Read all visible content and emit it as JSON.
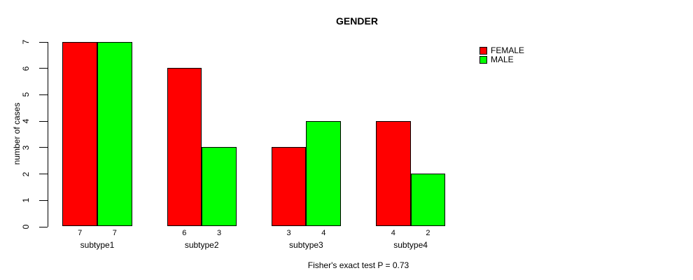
{
  "title": "GENDER",
  "footer": "Fisher's exact test P = 0.73",
  "chart_data": {
    "type": "bar",
    "title": "GENDER",
    "categories": [
      "subtype1",
      "subtype2",
      "subtype3",
      "subtype4"
    ],
    "series": [
      {
        "name": "FEMALE",
        "color": "#FF0000",
        "values": [
          7,
          6,
          3,
          4
        ]
      },
      {
        "name": "MALE",
        "color": "#00FF00",
        "values": [
          7,
          3,
          4,
          2
        ]
      }
    ],
    "bar_value_labels": [
      [
        "7",
        "7"
      ],
      [
        "6",
        "3"
      ],
      [
        "3",
        "4"
      ],
      [
        "4",
        "2"
      ]
    ],
    "xlabel": "",
    "ylabel": "number of cases",
    "ylim": [
      0,
      7
    ],
    "yticks": [
      "0",
      "1",
      "2",
      "3",
      "4",
      "5",
      "6",
      "7"
    ],
    "grid": false,
    "legend_position": "top-right",
    "bar_border_color": "#000000",
    "annotation": "Fisher's exact test P = 0.73"
  }
}
